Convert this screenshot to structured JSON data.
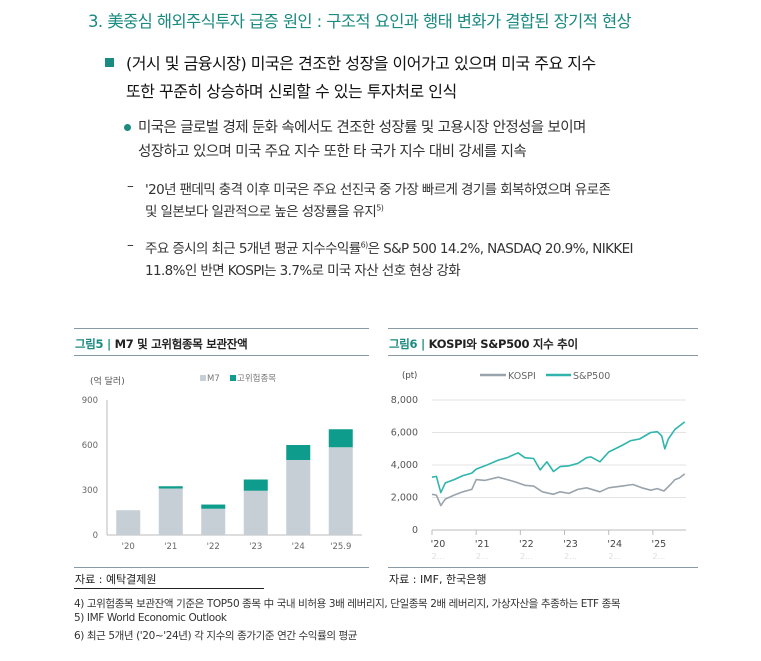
{
  "heading": "3. 美중심 해외주식투자 급증 원인 : 구조적 요인과 행태 변화가 결합된 장기적 현상",
  "bullet1": {
    "line1": "(거시 및 금융시장) 미국은 견조한 성장을 이어가고 있으며 미국 주요 지수",
    "line2": "또한 꾸준히 상승하며 신뢰할 수 있는 투자처로 인식"
  },
  "bullet2": {
    "line1": "미국은 글로벌 경제 둔화 속에서도 견조한 성장률 및 고용시장 안정성을 보이며",
    "line2": "성장하고 있으며 미국 주요 지수 또한 타 국가 지수 대비 강세를 지속"
  },
  "dash1": {
    "line1": "'20년 팬데믹 충격 이후 미국은 주요 선진국 중 가장 빠르게 경기를 회복하였으며 유로존",
    "line2": "및 일본보다 일관적으로 높은 성장률을 유지",
    "sup": "5)"
  },
  "dash2": {
    "line1a": "주요 증시의 최근 5개년 평균 지수수익률",
    "sup": "6)",
    "line1b": "은 S&P 500 14.2%, NASDAQ 20.9%, NIKKEI",
    "line2": "11.8%인 반면 KOSPI는 3.7%로 미국 자산 선호 현상 강화"
  },
  "dash_mark": "–",
  "fig5": {
    "num": "그림5",
    "title": "M7 및 고위험종목 보관잔액",
    "source": "자료 : 예탁결제원"
  },
  "fig6": {
    "num": "그림6",
    "title": "KOSPI와 S&P500 지수 추이",
    "source": "자료 : IMF, 한국은행"
  },
  "sep": "|",
  "footnotes": [
    "4) 고위험종목 보관잔액 기준은 TOP50 종목 中 국내 비허용 3배 레버리지, 단일종목 2배 레버리지, 가상자산을 추종하는 ETF 종목",
    "5) IMF World Economic Outlook",
    "6) 최근 5개년 ('20~'24년) 각 지수의 종가기준 연간 수익률의 평균"
  ],
  "colors": {
    "accent": "#1b8a80",
    "m7": "#c5cfd5",
    "risk": "#0e9c8c",
    "kospi": "#9aa4ad",
    "sp": "#2fb5ad"
  },
  "chart_data": [
    {
      "type": "bar",
      "stacked": true,
      "ylabel": "(억 달러)",
      "ylim": [
        0,
        900
      ],
      "yticks": [
        "0",
        "300",
        "600",
        "900"
      ],
      "categories": [
        "'20",
        "'21",
        "'22",
        "'23",
        "'24",
        "'25.9"
      ],
      "series": [
        {
          "name": "M7",
          "values": [
            165,
            310,
            175,
            295,
            500,
            585
          ]
        },
        {
          "name": "고위험종목",
          "values": [
            0,
            15,
            28,
            75,
            100,
            120
          ]
        }
      ],
      "legend": "top"
    },
    {
      "type": "line",
      "ylabel": "(pt)",
      "ylim": [
        0,
        8000
      ],
      "yticks": [
        "0",
        "2,000",
        "4,000",
        "6,000",
        "8,000"
      ],
      "xlim": [
        2020,
        2025.75
      ],
      "xticks": [
        "'20",
        "'21",
        "'22",
        "'23",
        "'24",
        "'25"
      ],
      "xsub": "2...",
      "series": [
        {
          "name": "KOSPI",
          "x": [
            2020,
            2020.1,
            2020.2,
            2020.3,
            2020.5,
            2020.7,
            2020.9,
            2021.0,
            2021.2,
            2021.5,
            2021.7,
            2021.9,
            2022.1,
            2022.3,
            2022.5,
            2022.75,
            2022.9,
            2023.1,
            2023.3,
            2023.5,
            2023.8,
            2024.0,
            2024.3,
            2024.55,
            2024.75,
            2024.95,
            2025.1,
            2025.25,
            2025.4,
            2025.5,
            2025.6,
            2025.72
          ],
          "y": [
            2200,
            2150,
            1500,
            1900,
            2150,
            2350,
            2500,
            3100,
            3050,
            3250,
            3100,
            2950,
            2750,
            2700,
            2350,
            2200,
            2350,
            2250,
            2500,
            2600,
            2350,
            2600,
            2700,
            2800,
            2600,
            2450,
            2550,
            2400,
            2800,
            3100,
            3200,
            3450
          ]
        },
        {
          "name": "S&P500",
          "x": [
            2020,
            2020.1,
            2020.2,
            2020.3,
            2020.5,
            2020.7,
            2020.9,
            2021.0,
            2021.2,
            2021.5,
            2021.7,
            2021.95,
            2022.1,
            2022.3,
            2022.45,
            2022.6,
            2022.75,
            2022.9,
            2023.1,
            2023.3,
            2023.5,
            2023.6,
            2023.8,
            2024.0,
            2024.3,
            2024.5,
            2024.7,
            2024.95,
            2025.1,
            2025.2,
            2025.27,
            2025.35,
            2025.5,
            2025.6,
            2025.72
          ],
          "y": [
            3250,
            3300,
            2300,
            2900,
            3100,
            3350,
            3500,
            3750,
            3950,
            4300,
            4450,
            4750,
            4450,
            4400,
            3700,
            4200,
            3600,
            3900,
            3950,
            4100,
            4450,
            4500,
            4200,
            4800,
            5200,
            5500,
            5600,
            6000,
            6050,
            5800,
            5000,
            5600,
            6200,
            6400,
            6650
          ]
        }
      ],
      "legend": "top"
    }
  ]
}
